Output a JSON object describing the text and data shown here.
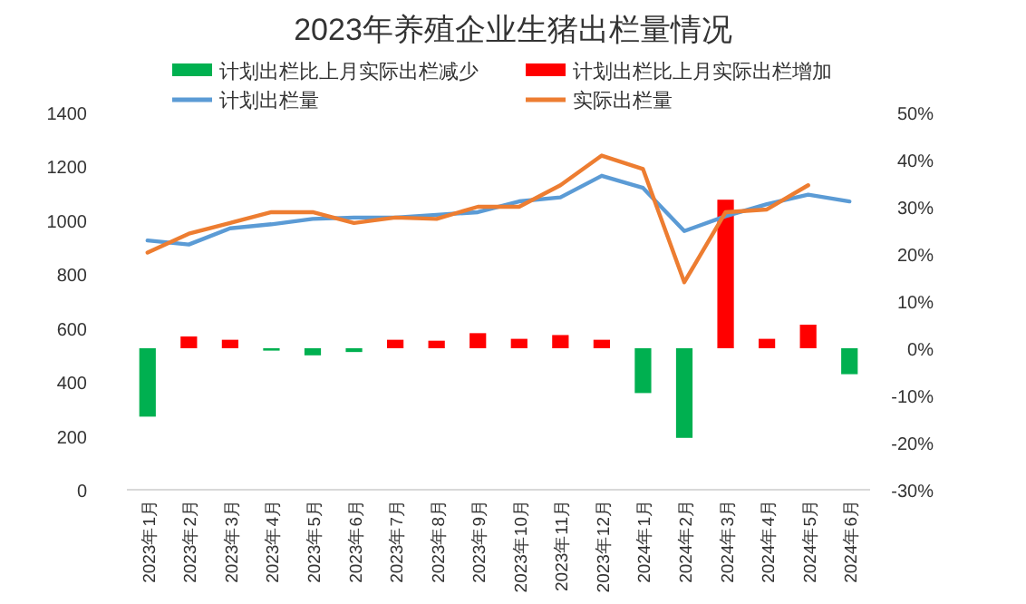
{
  "chart_data": {
    "type": "bar",
    "title": "2023年养殖企业生猪出栏量情况",
    "categories": [
      "2023年1月",
      "2023年2月",
      "2023年3月",
      "2023年4月",
      "2023年5月",
      "2023年6月",
      "2023年7月",
      "2023年8月",
      "2023年9月",
      "2023年10月",
      "2023年11月",
      "2023年12月",
      "2024年1月",
      "2024年2月",
      "2024年3月",
      "2024年4月",
      "2024年5月",
      "2024年6月"
    ],
    "series": [
      {
        "name": "计划出栏比上月实际出栏减少",
        "axis": "y2",
        "color": "#00b050",
        "values": [
          -14.5,
          null,
          null,
          -0.5,
          -1.5,
          -0.8,
          null,
          null,
          null,
          null,
          null,
          null,
          -9.5,
          -19,
          null,
          null,
          null,
          -5.5
        ]
      },
      {
        "name": "计划出栏比上月实际出栏增加",
        "axis": "y2",
        "color": "#ff0000",
        "values": [
          null,
          2.5,
          1.8,
          null,
          null,
          null,
          1.8,
          1.6,
          3.2,
          2,
          2.8,
          1.8,
          null,
          null,
          31.5,
          2,
          5,
          null
        ]
      },
      {
        "name": "计划出栏量",
        "type": "line",
        "color": "#5b9bd5",
        "values": [
          925,
          910,
          970,
          985,
          1005,
          1010,
          1010,
          1020,
          1030,
          1070,
          1085,
          1165,
          1120,
          960,
          1015,
          1060,
          1095,
          1070
        ]
      },
      {
        "name": "实际出栏量",
        "type": "line",
        "color": "#ed7d31",
        "values": [
          880,
          950,
          990,
          1030,
          1030,
          990,
          1010,
          1005,
          1050,
          1050,
          1130,
          1240,
          1190,
          770,
          1030,
          1040,
          1130,
          null
        ]
      }
    ],
    "ylim": [
      0,
      1400
    ],
    "yticks": [
      0,
      200,
      400,
      600,
      800,
      1000,
      1200,
      1400
    ],
    "y2lim": [
      -30,
      50
    ],
    "y2ticks": [
      {
        "value": -30,
        "label": "-30%"
      },
      {
        "value": -20,
        "label": "-20%"
      },
      {
        "value": -10,
        "label": "-10%"
      },
      {
        "value": 0,
        "label": "0%"
      },
      {
        "value": 10,
        "label": "10%"
      },
      {
        "value": 20,
        "label": "20%"
      },
      {
        "value": 30,
        "label": "30%"
      },
      {
        "value": 40,
        "label": "40%"
      },
      {
        "value": 50,
        "label": "50%"
      }
    ],
    "legend": "top",
    "grid": false
  }
}
